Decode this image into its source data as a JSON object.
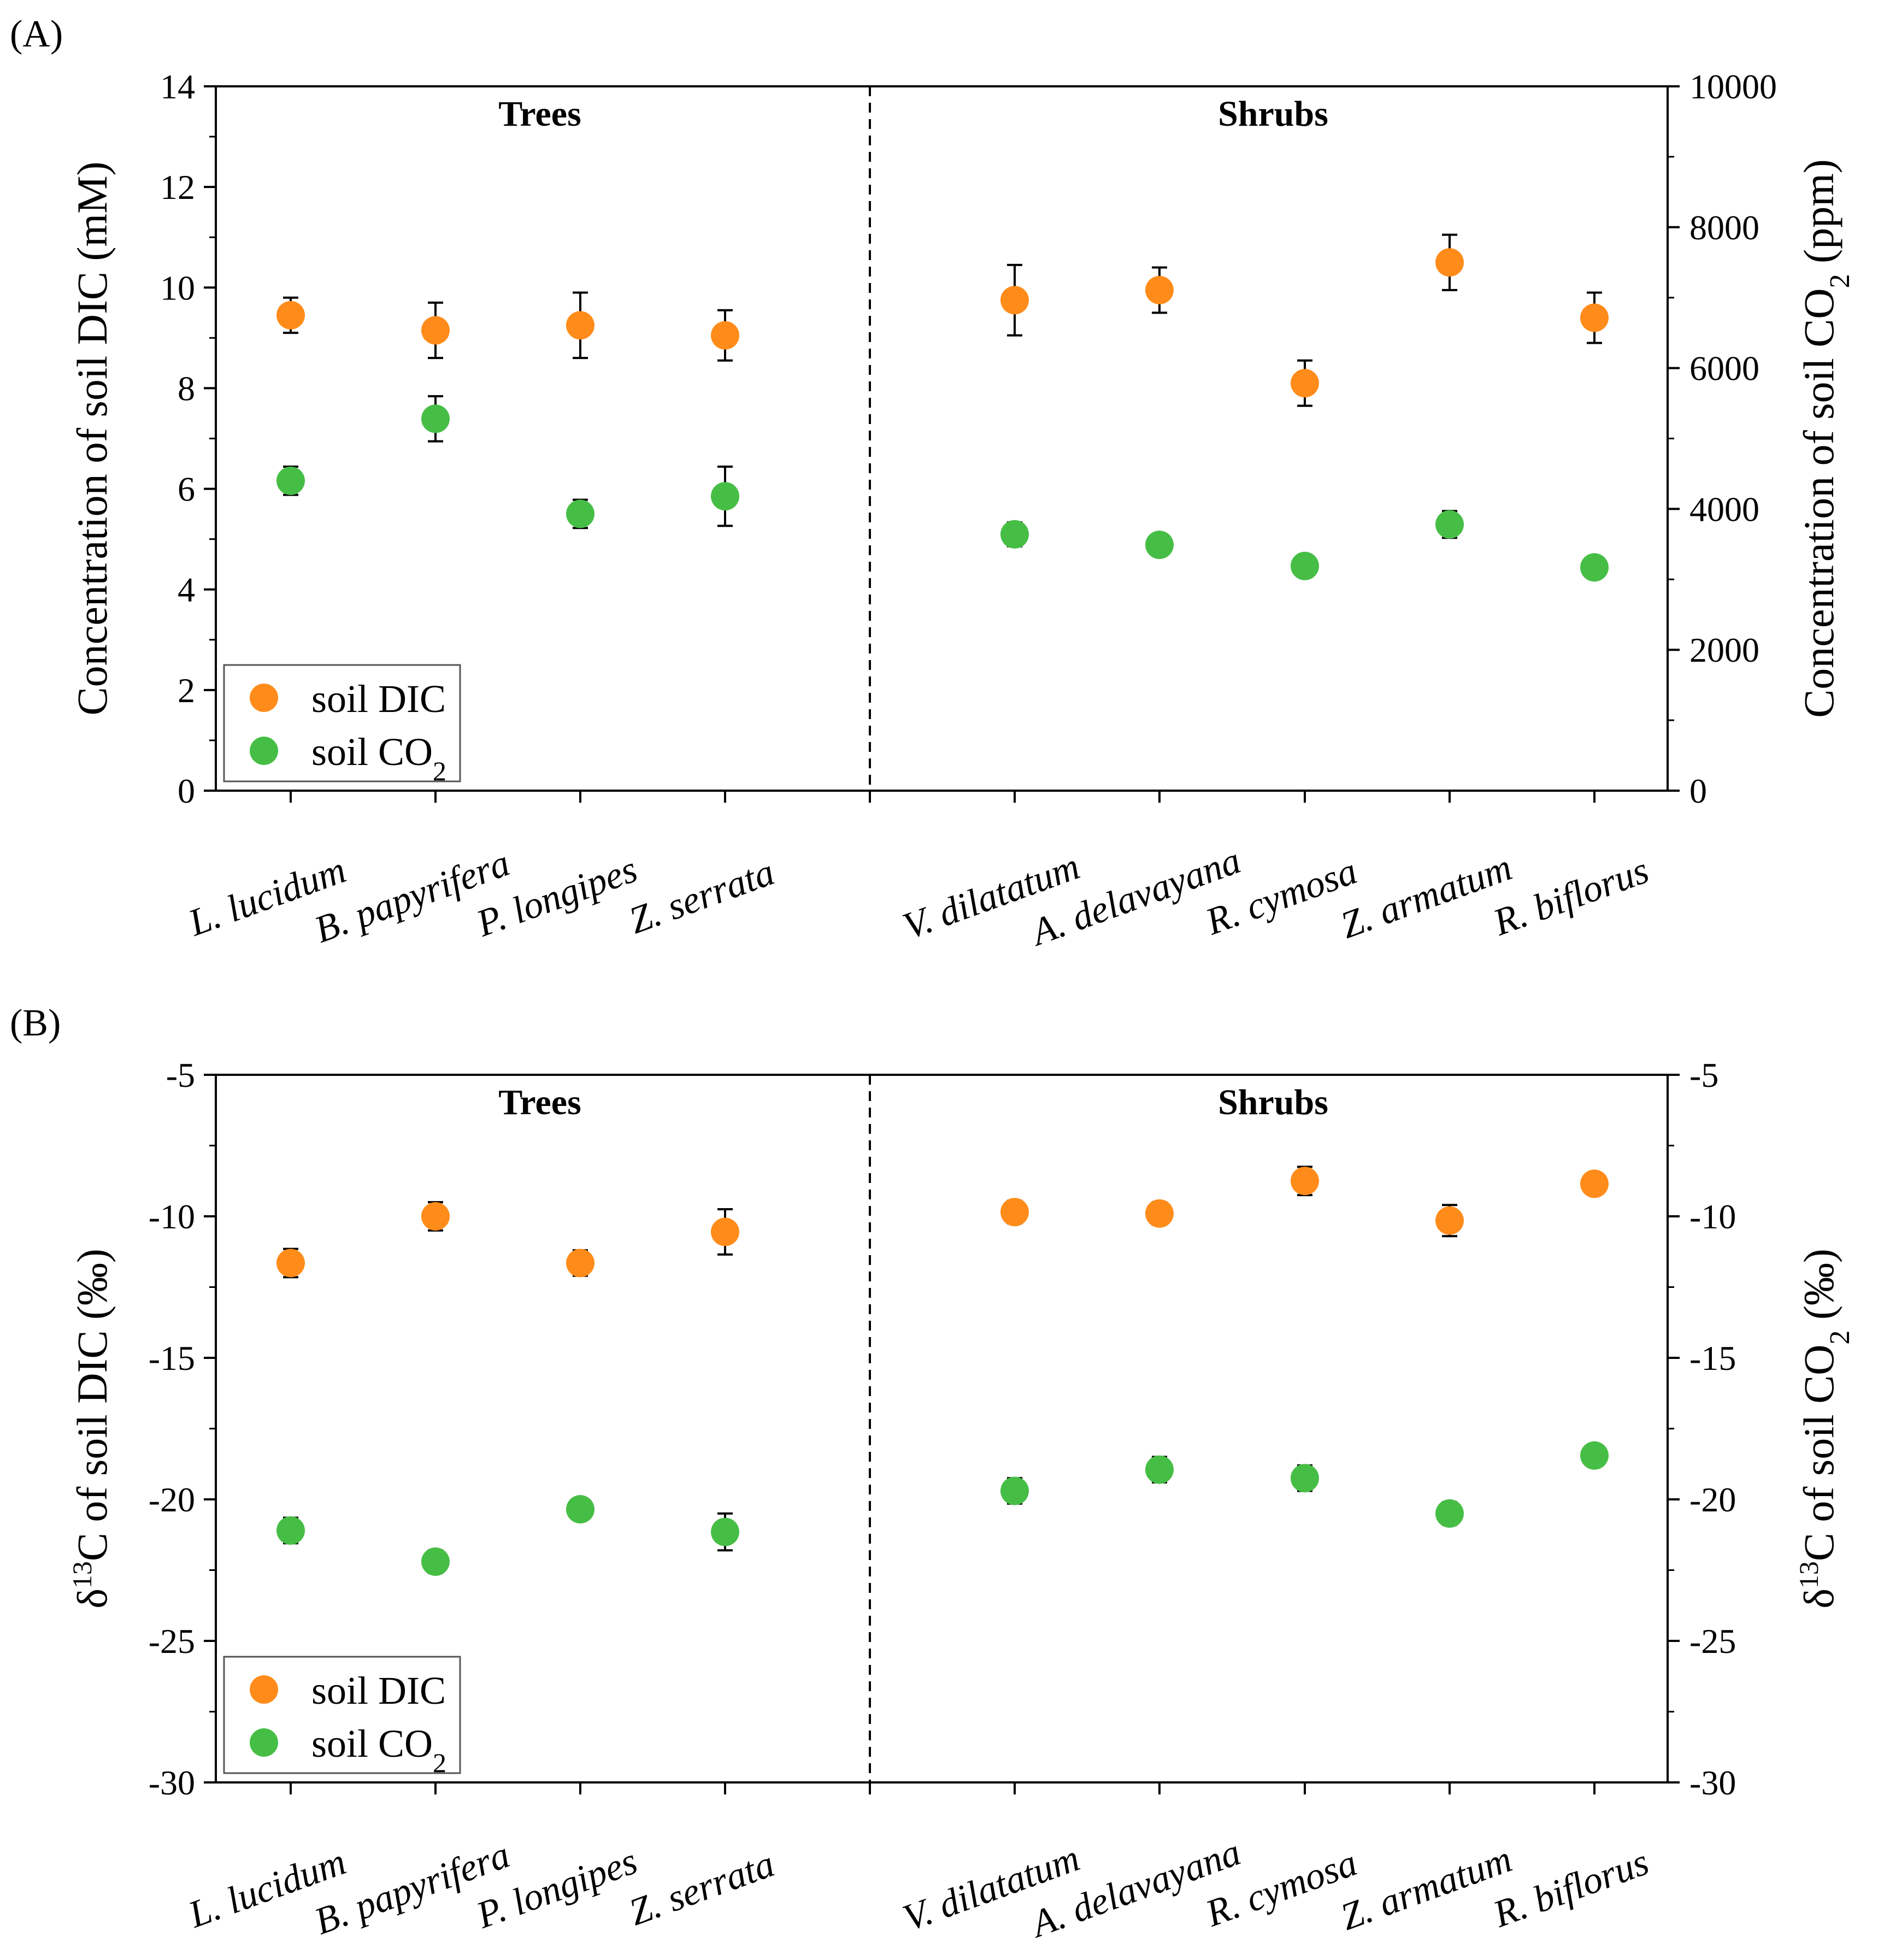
{
  "chart_data": [
    {
      "type": "scatter",
      "panel_label": "(A)",
      "categories": [
        "L. lucidum",
        "B. papyrifera",
        "P. longipes",
        "Z. serrata",
        "V. dilatatum",
        "A. delavayana",
        "R. cymosa",
        "Z. armatum",
        "R. biflorus"
      ],
      "groups": [
        {
          "name": "Trees",
          "categories": [
            "L. lucidum",
            "B. papyrifera",
            "P. longipes",
            "Z. serrata"
          ]
        },
        {
          "name": "Shrubs",
          "categories": [
            "V. dilatatum",
            "A. delavayana",
            "R. cymosa",
            "Z. armatum",
            "R. biflorus"
          ]
        }
      ],
      "ylabel": "Concentration of soil DIC (mM)",
      "ylabel_right": {
        "main": "Concentration of soil CO",
        "sub": "2",
        "tail": " (ppm)"
      },
      "ylim": [
        0,
        14
      ],
      "yticks": [
        "0",
        "2",
        "4",
        "6",
        "8",
        "10",
        "12",
        "14"
      ],
      "ylim_right": [
        0,
        10000
      ],
      "yticks_right": [
        "0",
        "2000",
        "4000",
        "6000",
        "8000",
        "10000"
      ],
      "legend": {
        "position": "bottom-left",
        "entries": [
          {
            "main": "soil DIC",
            "sub": "",
            "color": "#FF8C1A"
          },
          {
            "main": "soil CO",
            "sub": "2",
            "color": "#46BE46"
          }
        ]
      },
      "series": [
        {
          "name": "soil DIC",
          "axis": "left",
          "color": "#FF8C1A",
          "values": [
            9.45,
            9.15,
            9.25,
            9.05,
            9.75,
            9.95,
            8.1,
            10.5,
            9.4
          ],
          "errors": [
            0.35,
            0.55,
            0.65,
            0.5,
            0.7,
            0.45,
            0.45,
            0.55,
            0.5
          ]
        },
        {
          "name": "soil CO2",
          "axis": "right",
          "color": "#46BE46",
          "values": [
            4400,
            5280,
            3930,
            4180,
            3640,
            3490,
            3190,
            3780,
            3170
          ],
          "errors": [
            200,
            320,
            200,
            420,
            170,
            140,
            130,
            190,
            120
          ]
        }
      ]
    },
    {
      "type": "scatter",
      "panel_label": "(B)",
      "categories": [
        "L. lucidum",
        "B. papyrifera",
        "P. longipes",
        "Z. serrata",
        "V. dilatatum",
        "A. delavayana",
        "R. cymosa",
        "Z. armatum",
        "R. biflorus"
      ],
      "groups": [
        {
          "name": "Trees",
          "categories": [
            "L. lucidum",
            "B. papyrifera",
            "P. longipes",
            "Z. serrata"
          ]
        },
        {
          "name": "Shrubs",
          "categories": [
            "V. dilatatum",
            "A. delavayana",
            "R. cymosa",
            "Z. armatum",
            "R. biflorus"
          ]
        }
      ],
      "ylabel": {
        "pre": "δ",
        "sup": "13",
        "main": "C of soil DIC (‰)"
      },
      "ylabel_right": {
        "pre": "δ",
        "sup": "13",
        "main": "C of soil CO",
        "sub": "2",
        "tail": " (‰)"
      },
      "ylim": [
        -30,
        -5
      ],
      "yticks": [
        "-30",
        "-25",
        "-20",
        "-15",
        "-10",
        "-5"
      ],
      "yticks_right": [
        "-30",
        "-25",
        "-20",
        "-15",
        "-10",
        "-5"
      ],
      "legend": {
        "position": "bottom-left",
        "entries": [
          {
            "main": "soil DIC",
            "sub": "",
            "color": "#FF8C1A"
          },
          {
            "main": "soil CO",
            "sub": "2",
            "color": "#46BE46"
          }
        ]
      },
      "series": [
        {
          "name": "soil DIC",
          "axis": "left",
          "color": "#FF8C1A",
          "values": [
            -11.65,
            -10.0,
            -11.65,
            -10.55,
            -9.85,
            -9.9,
            -8.75,
            -10.15,
            -8.85
          ],
          "errors": [
            0.5,
            0.5,
            0.45,
            0.8,
            0.4,
            0.4,
            0.5,
            0.55,
            0.35
          ]
        },
        {
          "name": "soil CO2",
          "axis": "left",
          "color": "#46BE46",
          "values": [
            -21.1,
            -22.2,
            -20.35,
            -21.15,
            -19.7,
            -18.95,
            -19.25,
            -20.5,
            -18.45
          ],
          "errors": [
            0.45,
            0.4,
            0.35,
            0.65,
            0.45,
            0.45,
            0.45,
            0.4,
            0.35
          ]
        }
      ]
    }
  ]
}
